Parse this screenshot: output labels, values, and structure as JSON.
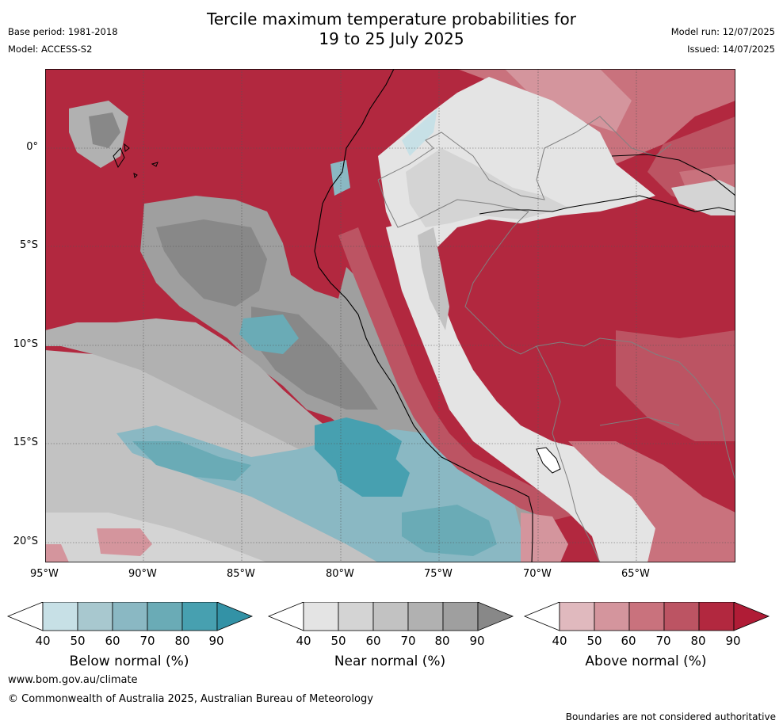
{
  "title": {
    "line1": "Tercile maximum temperature probabilities for",
    "line2": "19 to 25 July 2025"
  },
  "meta": {
    "base_period": "Base period: 1981-2018",
    "model": "Model: ACCESS-S2",
    "model_run": "Model run: 12/07/2025",
    "issued": "Issued: 14/07/2025"
  },
  "map": {
    "x_ticks": [
      "95°W",
      "90°W",
      "85°W",
      "80°W",
      "75°W",
      "70°W",
      "65°W"
    ],
    "y_ticks": [
      "0°",
      "5°S",
      "10°S",
      "15°S",
      "20°S"
    ],
    "colors": {
      "above": [
        "#e0b9be",
        "#d4959d",
        "#c9727d",
        "#bc5463",
        "#b2283f",
        "#b01c36"
      ],
      "near": [
        "#e4e4e4",
        "#d4d4d4",
        "#c2c2c2",
        "#b1b1b1",
        "#9f9f9f",
        "#888888"
      ],
      "below": [
        "#c7e0e6",
        "#a8c8cf",
        "#8ab8c3",
        "#6aabb6",
        "#47a0b0",
        "#3392a6"
      ],
      "coast": "#000000",
      "border": "#808080"
    }
  },
  "colorbars": [
    {
      "label": "Below normal (%)",
      "ticks": [
        "40",
        "50",
        "60",
        "70",
        "80",
        "90"
      ],
      "colors": [
        "#c7e0e6",
        "#a8c8cf",
        "#8ab8c3",
        "#6aabb6",
        "#47a0b0",
        "#3392a6"
      ]
    },
    {
      "label": "Near normal (%)",
      "ticks": [
        "40",
        "50",
        "60",
        "70",
        "80",
        "90"
      ],
      "colors": [
        "#e4e4e4",
        "#d4d4d4",
        "#c2c2c2",
        "#b1b1b1",
        "#9f9f9f",
        "#888888"
      ]
    },
    {
      "label": "Above normal (%)",
      "ticks": [
        "40",
        "50",
        "60",
        "70",
        "80",
        "90"
      ],
      "colors": [
        "#e0b9be",
        "#d4959d",
        "#c9727d",
        "#bc5463",
        "#b2283f",
        "#b01c36"
      ]
    }
  ],
  "footer": {
    "url": "www.bom.gov.au/climate",
    "copyright": "© Commonwealth of Australia 2025, Australian Bureau of Meteorology",
    "disclaimer": "Boundaries are not considered authoritative"
  }
}
